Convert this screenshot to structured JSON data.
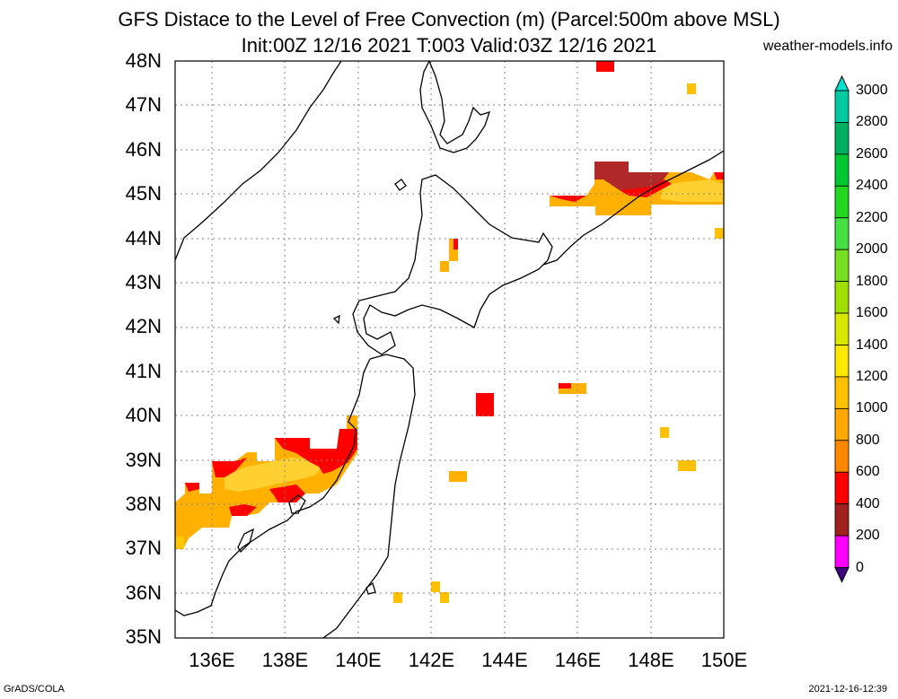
{
  "title_line1": "GFS Distace to the Level of Free Convection (m) (Parcel:500m above MSL)",
  "title_line2": "Init:00Z 12/16 2021 T:003 Valid:03Z 12/16 2021",
  "site": "weather-models.info",
  "footer_left": "GrADS/COLA",
  "footer_right": "2021-12-16-12:39",
  "lat_labels": [
    "48N",
    "47N",
    "46N",
    "45N",
    "44N",
    "43N",
    "42N",
    "41N",
    "40N",
    "39N",
    "38N",
    "37N",
    "36N",
    "35N"
  ],
  "lon_labels": [
    "136E",
    "138E",
    "140E",
    "142E",
    "144E",
    "146E",
    "148E",
    "150E"
  ],
  "colorbar": {
    "labels": [
      "3000",
      "2800",
      "2600",
      "2400",
      "2200",
      "2000",
      "1800",
      "1600",
      "1400",
      "1200",
      "1000",
      "800",
      "600",
      "400",
      "200",
      "0"
    ],
    "colors": [
      "#00e0d0",
      "#00c8a0",
      "#00b060",
      "#00c830",
      "#22d622",
      "#44e044",
      "#77e022",
      "#a0e000",
      "#d8e800",
      "#ffe800",
      "#ffc000",
      "#ffa800",
      "#ff8800",
      "#ff0000",
      "#a02020",
      "#ff00ff",
      "#400080"
    ]
  },
  "colors": {
    "lfc_300": "#ff0000",
    "lfc_500": "#b02828",
    "lfc_700": "#ff9900",
    "lfc_900": "#ffb300",
    "lfc_1100": "#ffcc00",
    "coast": "#000000",
    "grid": "#888888"
  }
}
